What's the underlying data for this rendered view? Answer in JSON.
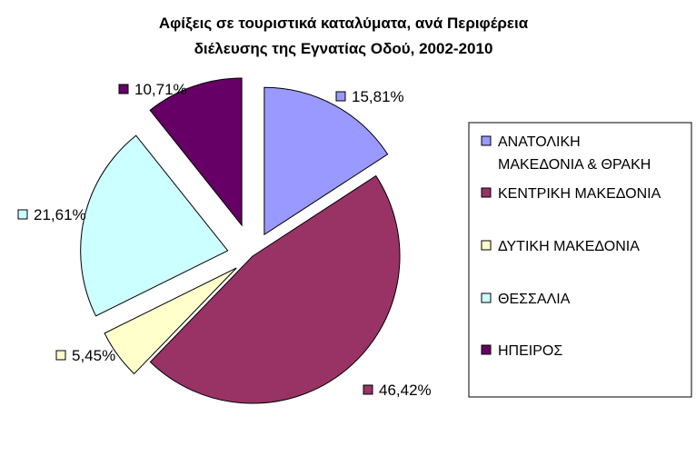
{
  "chart_data": {
    "type": "pie",
    "title_lines": [
      "Αφίξεις σε τουριστικά καταλύματα, ανά Περιφέρεια",
      "διέλευσης της Εγνατίας Οδού, 2002-2010"
    ],
    "slices": [
      {
        "name": "ΑΝΑΤΟΛΙΚΗ ΜΑΚΕΔΟΝΙΑ & ΘΡΑΚΗ",
        "legend_lines": [
          "ΑΝΑΤΟΛΙΚΗ",
          "ΜΑΚΕΔΟΝΙΑ & ΘΡΑΚΗ"
        ],
        "value": 15.81,
        "label": "15,81%",
        "color": "#9999ff"
      },
      {
        "name": "ΚΕΝΤΡΙΚΗ ΜΑΚΕΔΟΝΙΑ",
        "legend_lines": [
          "ΚΕΝΤΡΙΚΗ ΜΑΚΕΔΟΝΙΑ"
        ],
        "value": 46.42,
        "label": "46,42%",
        "color": "#993366"
      },
      {
        "name": "ΔΥΤΙΚΗ ΜΑΚΕΔΟΝΙΑ",
        "legend_lines": [
          "ΔΥΤΙΚΗ ΜΑΚΕΔΟΝΙΑ"
        ],
        "value": 5.45,
        "label": "5,45%",
        "color": "#ffffcc"
      },
      {
        "name": "ΘΕΣΣΑΛΙΑ",
        "legend_lines": [
          "ΘΕΣΣΑΛΙΑ"
        ],
        "value": 21.61,
        "label": "21,61%",
        "color": "#ccffff"
      },
      {
        "name": "ΗΠΕΙΡΟΣ",
        "legend_lines": [
          "ΗΠΕΙΡΟΣ"
        ],
        "value": 10.71,
        "label": "10,71%",
        "color": "#660066"
      }
    ],
    "legend_position": "right",
    "exploded": true,
    "start_angle": "12 o'clock",
    "direction": "clockwise"
  }
}
